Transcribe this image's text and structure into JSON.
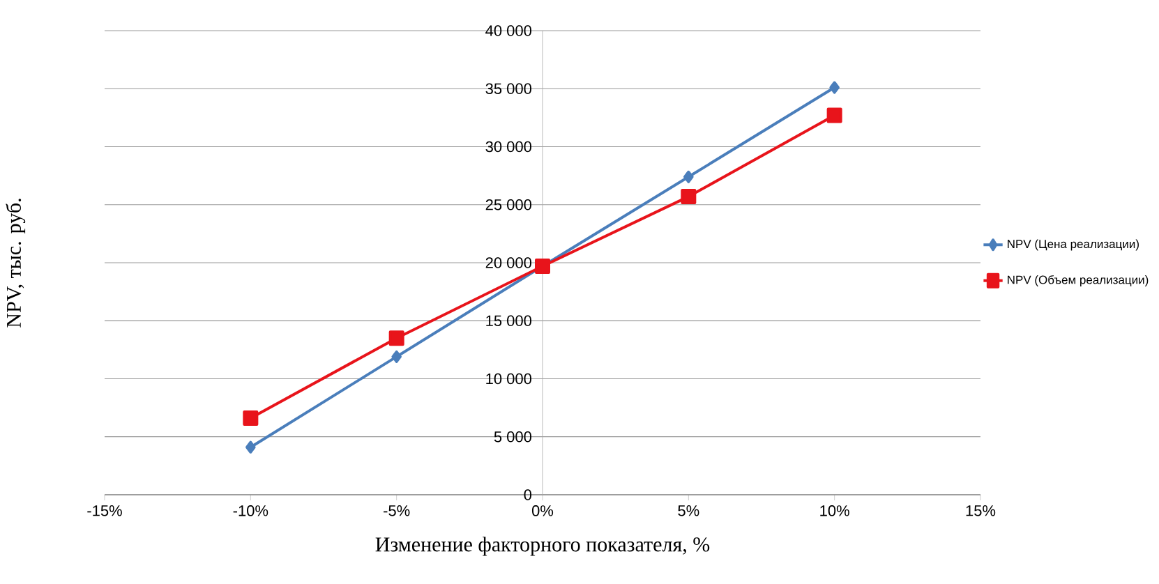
{
  "chart_data": {
    "type": "line",
    "xlabel": "Изменение факторного показателя, %",
    "ylabel": "NPV, тыс. руб.",
    "x": [
      -10,
      -5,
      0,
      5,
      10
    ],
    "series": [
      {
        "name": "NPV (Цена реализации)",
        "color": "#4a7ebb",
        "marker": "diamond",
        "values": [
          4100,
          11900,
          19700,
          27400,
          35100
        ]
      },
      {
        "name": "NPV (Объем реализации)",
        "color": "#e8141b",
        "marker": "square",
        "values": [
          6600,
          13500,
          19700,
          25700,
          32700
        ]
      }
    ],
    "xlim": [
      -15,
      15
    ],
    "xticks": [
      {
        "value": -15,
        "label": "-15%"
      },
      {
        "value": -10,
        "label": "-10%"
      },
      {
        "value": -5,
        "label": "-5%"
      },
      {
        "value": 0,
        "label": "0%"
      },
      {
        "value": 5,
        "label": "5%"
      },
      {
        "value": 10,
        "label": "10%"
      },
      {
        "value": 15,
        "label": "15%"
      }
    ],
    "ylim": [
      0,
      40000
    ],
    "yticks": [
      0,
      {
        "value": 5000,
        "label": "5 000"
      },
      {
        "value": 10000,
        "label": "10 000"
      },
      {
        "value": 15000,
        "label": "15 000"
      },
      {
        "value": 20000,
        "label": "20 000"
      },
      {
        "value": 25000,
        "label": "25 000"
      },
      {
        "value": 30000,
        "label": "30 000"
      },
      {
        "value": 35000,
        "label": "35 000"
      },
      {
        "value": 40000,
        "label": "40 000"
      }
    ],
    "grid": "y",
    "legend": "right",
    "line_style": "solid"
  }
}
